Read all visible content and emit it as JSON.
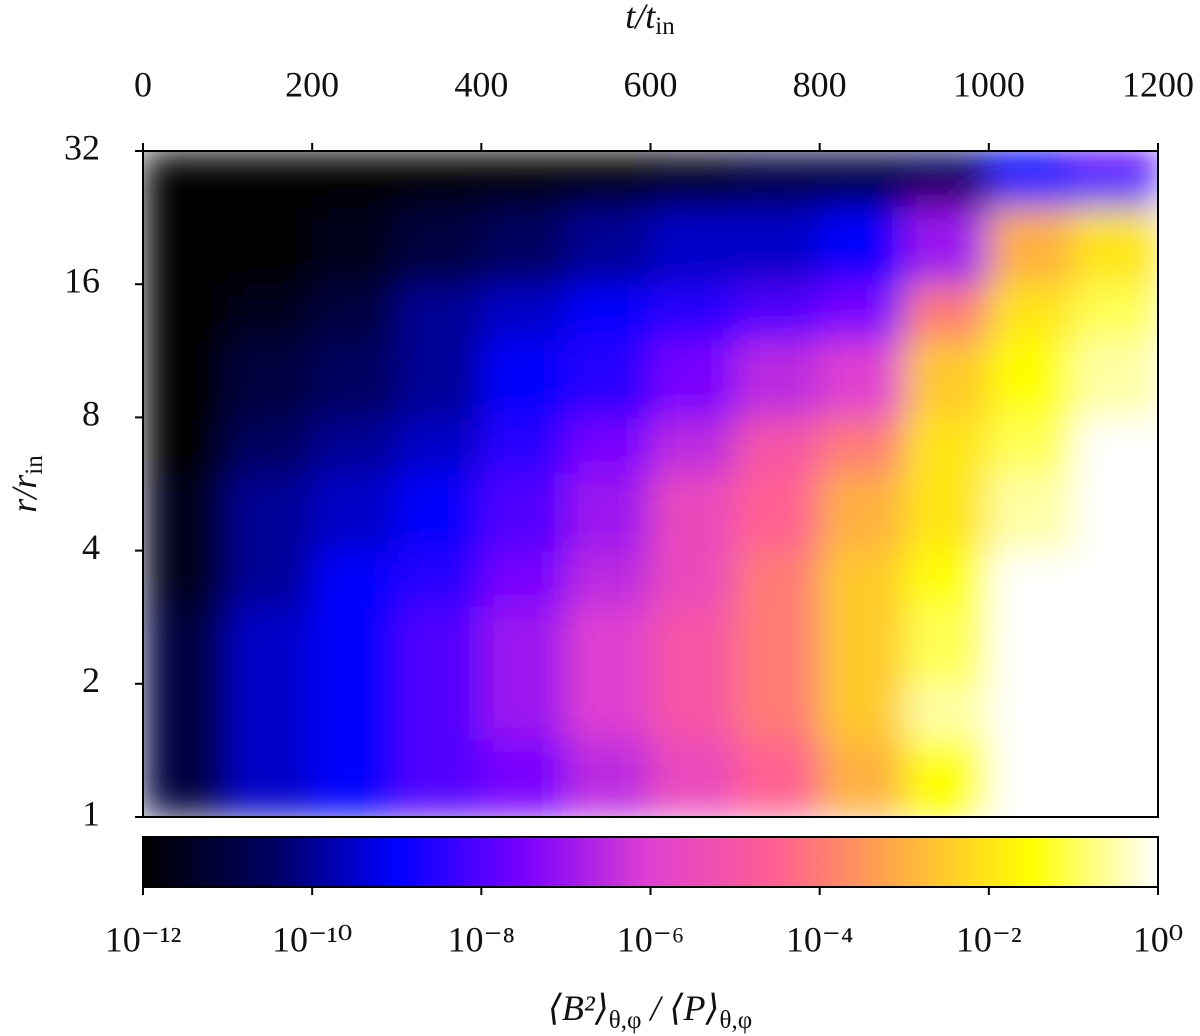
{
  "chart_data": {
    "type": "heatmap",
    "xlabel_parts": [
      "t/t",
      "in"
    ],
    "ylabel_parts": [
      "r/r",
      "in"
    ],
    "colorbar_label_parts": [
      "⟨B²⟩",
      "θ,φ",
      " / ⟨P⟩",
      "θ,φ"
    ],
    "x_edges": [
      0,
      100,
      200,
      300,
      400,
      500,
      600,
      700,
      800,
      900,
      1000,
      1100,
      1200
    ],
    "y_edges": [
      1,
      1.5,
      2,
      3,
      4,
      6,
      8,
      12,
      16,
      24,
      32
    ],
    "z": [
      [
        1e-11,
        3e-10,
        1e-09,
        1e-08,
        3e-08,
        3e-07,
        3e-06,
        3e-05,
        0.001,
        0.03,
        1,
        1
      ],
      [
        1e-11,
        3e-10,
        1e-09,
        1e-08,
        1e-07,
        1e-06,
        1e-05,
        0.0001,
        0.003,
        0.3,
        1,
        1
      ],
      [
        1e-11,
        3e-10,
        1e-09,
        1e-08,
        1e-07,
        1e-06,
        1e-05,
        0.0001,
        0.003,
        0.1,
        1,
        1
      ],
      [
        3e-12,
        1e-10,
        1e-09,
        3e-09,
        3e-08,
        3e-07,
        3e-06,
        0.0001,
        0.003,
        0.03,
        1,
        1
      ],
      [
        3e-12,
        1e-10,
        3e-10,
        1e-09,
        1e-08,
        1e-07,
        3e-06,
        3e-05,
        0.001,
        0.01,
        0.3,
        1
      ],
      [
        1e-12,
        3e-11,
        1e-10,
        3e-10,
        3e-09,
        3e-08,
        3e-07,
        1e-05,
        0.0001,
        0.01,
        0.1,
        1
      ],
      [
        1e-12,
        1e-11,
        3e-11,
        1e-10,
        1e-09,
        3e-09,
        3e-08,
        3e-07,
        1e-06,
        0.003,
        0.03,
        0.3
      ],
      [
        1e-12,
        3e-12,
        1e-11,
        1e-10,
        3e-10,
        1e-09,
        3e-09,
        1e-08,
        3e-08,
        0.0001,
        0.01,
        0.1
      ],
      [
        1e-12,
        1e-12,
        3e-12,
        1e-11,
        3e-11,
        1e-10,
        3e-10,
        3e-10,
        1e-09,
        1e-07,
        0.001,
        0.01
      ],
      [
        1e-12,
        1e-12,
        1e-12,
        1e-12,
        1e-12,
        1e-12,
        3e-12,
        1e-11,
        1e-11,
        3e-11,
        1e-09,
        1e-08
      ]
    ],
    "xlim": [
      0,
      1200
    ],
    "xticks": [
      0,
      200,
      400,
      600,
      800,
      1000,
      1200
    ],
    "ylim": [
      1,
      32
    ],
    "yscale": "log",
    "yticks": [
      1,
      2,
      4,
      8,
      16,
      32
    ],
    "clim": [
      1e-12,
      1
    ],
    "cscale": "log",
    "cticks": [
      {
        "value": 1e-12,
        "label": "10⁻¹²"
      },
      {
        "value": 1e-10,
        "label": "10⁻¹⁰"
      },
      {
        "value": 1e-08,
        "label": "10⁻⁸"
      },
      {
        "value": 1e-06,
        "label": "10⁻⁶"
      },
      {
        "value": 0.0001,
        "label": "10⁻⁴"
      },
      {
        "value": 0.01,
        "label": "10⁻²"
      },
      {
        "value": 1,
        "label": "10⁰"
      }
    ],
    "colormap": [
      "#000000",
      "#000060",
      "#0000ff",
      "#7a00ff",
      "#e040d0",
      "#ff6090",
      "#ffb040",
      "#ffff00",
      "#ffffff"
    ]
  }
}
